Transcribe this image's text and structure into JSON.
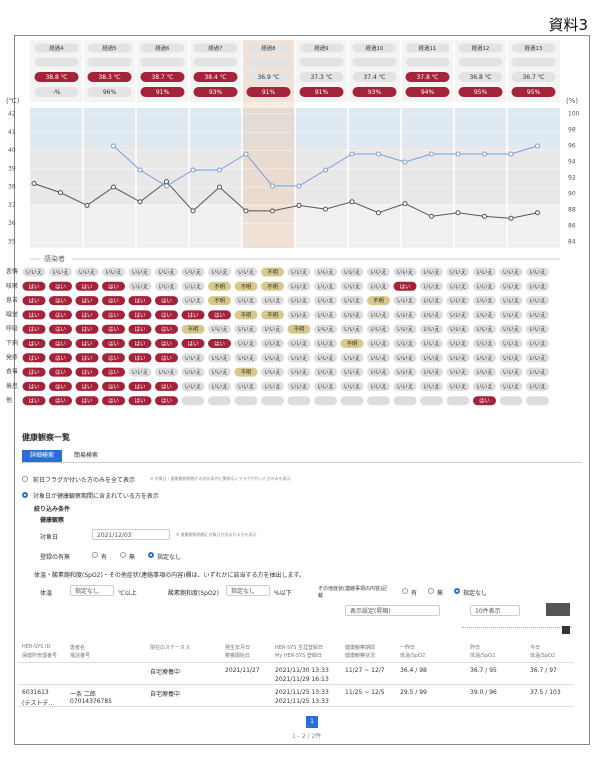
{
  "page_label": "資料3",
  "days": [
    "経過4",
    "経過5",
    "経過6",
    "経過7",
    "経過8",
    "経過9",
    "経過10",
    "経過11",
    "経過12",
    "経過13"
  ],
  "temperatures": [
    "38.8 ℃",
    "38.3 ℃",
    "38.7 ℃",
    "38.4 ℃",
    "36.9 ℃",
    "37.3 ℃",
    "37.4 ℃",
    "37.8 ℃",
    "36.8 ℃",
    "36.7 ℃"
  ],
  "temperature_colors": [
    "#a5233a",
    "#a5233a",
    "#a5233a",
    "#a5233a",
    "#e3e3e3",
    "#e3e3e3",
    "#e3e3e3",
    "#a5233a",
    "#e3e3e3",
    "#e3e3e3"
  ],
  "spo2": [
    "-%",
    "96%",
    "91%",
    "93%",
    "91%",
    "91%",
    "93%",
    "94%",
    "95%",
    "95%"
  ],
  "spo2_colors": [
    "#e3e3e3",
    "#e3e3e3",
    "#a5233a",
    "#a5233a",
    "#a5233a",
    "#a5233a",
    "#a5233a",
    "#a5233a",
    "#a5233a",
    "#a5233a"
  ],
  "chart_data": {
    "type": "line",
    "ylabel": "(℃)",
    "y2label": "(%)",
    "ylim": [
      35,
      42
    ],
    "yticks": [
      35,
      36,
      37,
      38,
      39,
      40,
      41,
      42
    ],
    "y2lim": [
      84,
      100
    ],
    "y2ticks": [
      84,
      86,
      88,
      90,
      92,
      94,
      96,
      98,
      100
    ],
    "series": [
      {
        "color": "#555555",
        "values": [
          38.2,
          37.7,
          37.0,
          38.0,
          37.2,
          38.3,
          36.7,
          38.0,
          36.7,
          36.7,
          37.0,
          36.8,
          37.2,
          36.6,
          37.1,
          36.4,
          36.6,
          36.4,
          36.3,
          36.6
        ]
      },
      {
        "color": "#7a9fd8",
        "axis": "y2",
        "values": [
          null,
          null,
          null,
          96,
          93,
          91,
          93,
          93,
          95,
          91,
          91,
          93,
          95,
          95,
          94,
          95,
          95,
          95,
          95,
          96
        ]
      }
    ]
  },
  "symptoms": {
    "title": "感染者",
    "status_colors": {
      "いいえ": "#dddddd",
      "はい": "#a5233a",
      "不明": "#d6c98a"
    },
    "rows": [
      {
        "label": "表情",
        "cells": [
          "いいえ",
          "いいえ",
          "いいえ",
          "いいえ",
          "いいえ",
          "いいえ",
          "いいえ",
          "いいえ",
          "いいえ",
          "不明",
          "いいえ",
          "いいえ",
          "いいえ",
          "いいえ",
          "いいえ",
          "いいえ",
          "いいえ",
          "いいえ",
          "いいえ",
          "いいえ"
        ]
      },
      {
        "label": "咳嗽",
        "cells": [
          "はい",
          "はい",
          "はい",
          "はい",
          "いいえ",
          "いいえ",
          "いいえ",
          "不明",
          "不明",
          "不明",
          "いいえ",
          "いいえ",
          "いいえ",
          "いいえ",
          "はい",
          "いいえ",
          "いいえ",
          "いいえ",
          "いいえ",
          "いいえ"
        ]
      },
      {
        "label": "息苦",
        "cells": [
          "はい",
          "はい",
          "はい",
          "はい",
          "はい",
          "はい",
          "いいえ",
          "不明",
          "いいえ",
          "いいえ",
          "いいえ",
          "いいえ",
          "いいえ",
          "不明",
          "いいえ",
          "いいえ",
          "いいえ",
          "いいえ",
          "いいえ",
          "いいえ"
        ]
      },
      {
        "label": "嗅覚",
        "cells": [
          "はい",
          "はい",
          "はい",
          "はい",
          "はい",
          "はい",
          "はい",
          "はい",
          "不明",
          "不明",
          "いいえ",
          "いいえ",
          "いいえ",
          "いいえ",
          "いいえ",
          "いいえ",
          "いいえ",
          "いいえ",
          "いいえ",
          "いいえ"
        ]
      },
      {
        "label": "呼吸",
        "cells": [
          "はい",
          "はい",
          "はい",
          "はい",
          "はい",
          "はい",
          "不明",
          "いいえ",
          "いいえ",
          "いいえ",
          "不明",
          "いいえ",
          "いいえ",
          "いいえ",
          "いいえ",
          "いいえ",
          "いいえ",
          "いいえ",
          "いいえ",
          "いいえ"
        ]
      },
      {
        "label": "下痢",
        "cells": [
          "はい",
          "はい",
          "はい",
          "はい",
          "はい",
          "はい",
          "はい",
          "はい",
          "いいえ",
          "いいえ",
          "いいえ",
          "いいえ",
          "不明",
          "いいえ",
          "いいえ",
          "いいえ",
          "いいえ",
          "いいえ",
          "いいえ",
          "いいえ"
        ]
      },
      {
        "label": "発疹",
        "cells": [
          "はい",
          "はい",
          "はい",
          "はい",
          "はい",
          "はい",
          "いいえ",
          "いいえ",
          "いいえ",
          "いいえ",
          "いいえ",
          "いいえ",
          "いいえ",
          "いいえ",
          "いいえ",
          "いいえ",
          "いいえ",
          "いいえ",
          "いいえ",
          "いいえ"
        ]
      },
      {
        "label": "食事",
        "cells": [
          "はい",
          "はい",
          "はい",
          "はい",
          "いいえ",
          "いいえ",
          "いいえ",
          "いいえ",
          "不明",
          "いいえ",
          "いいえ",
          "いいえ",
          "いいえ",
          "いいえ",
          "いいえ",
          "いいえ",
          "いいえ",
          "いいえ",
          "いいえ",
          "いいえ"
        ]
      },
      {
        "label": "倦怠",
        "cells": [
          "はい",
          "はい",
          "はい",
          "はい",
          "はい",
          "はい",
          "いいえ",
          "いいえ",
          "いいえ",
          "いいえ",
          "いいえ",
          "いいえ",
          "いいえ",
          "いいえ",
          "いいえ",
          "いいえ",
          "いいえ",
          "いいえ",
          "いいえ",
          "いいえ"
        ]
      },
      {
        "label": "他",
        "cells": [
          "はい",
          "はい",
          "はい",
          "はい",
          "はい",
          "はい",
          null,
          null,
          null,
          null,
          null,
          null,
          null,
          null,
          null,
          null,
          null,
          "はい",
          null,
          null
        ]
      }
    ]
  },
  "list": {
    "title": "健康観察一覧",
    "tabs": [
      "詳細検索",
      "簡易検索"
    ],
    "option1": "前日フラグが付いた方のみを全て表示",
    "option1_note": "※ 対象日・健康観察期間その他の条件に関係なくフラグが付いた方のみを表示",
    "option2": "対象日が健康観察期間に含まれている方を表示",
    "filter_title": "絞り込み条件",
    "filter_section": "健康観察",
    "date_label": "対象日",
    "date_value": "2021/12/03",
    "date_note": "※ 健康観察期間に対象日が含まれる方を表示",
    "registered_label": "登録の有無",
    "choices": [
      "有",
      "無",
      "指定なし"
    ],
    "condition_note": "体温・酸素飽和度(SpO2)・その他症状(連絡事項の内容)欄は、いずれかに該当する方を抽出します。",
    "temp_label": "体温",
    "temp_select": "指定なし",
    "temp_unit": "℃以上",
    "spo2_label": "酸素飽和度(SpO2)",
    "spo2_select": "指定なし",
    "spo2_unit": "%以下",
    "other_label": "その他症状(連絡事項の内容)記載",
    "sort_select": "表示設定(昇順)",
    "page_size": "10件表示",
    "headers": [
      [
        "HER-SYS ID",
        "保健所管理番号"
      ],
      [
        "患者名",
        "電話番号"
      ],
      [
        "現在のステータス"
      ],
      [
        "発生年月日",
        "療養開始日"
      ],
      [
        "HER-SYS 生涯登録日",
        "My HER-SYS 登録日"
      ],
      [
        "健康観察期間",
        "健康観察状況"
      ],
      [
        "一昨日",
        "体温/SpO2"
      ],
      [
        "昨日",
        "体温/SpO2"
      ],
      [
        "今日",
        "体温/SpO2"
      ]
    ],
    "rows": [
      [
        [],
        [],
        [
          "自宅療養中"
        ],
        [
          "2021/11/27"
        ],
        [
          "2021/11/30 13:33",
          "2021/11/29 16:13"
        ],
        [
          "11/27 ~ 12/7"
        ],
        [
          "36.4 / 98"
        ],
        [
          "36.7 / 95"
        ],
        [
          "36.7 / 97"
        ]
      ],
      [
        [
          "6031613",
          "(テストデ…"
        ],
        [
          "一条 二郎",
          "07014376785"
        ],
        [
          "自宅療養中"
        ],
        [],
        [
          "2021/11/25 13:33",
          "2021/11/25 13:33"
        ],
        [
          "11/25 ~ 12/5"
        ],
        [
          "29.5 / 99"
        ],
        [
          "39.0 / 96"
        ],
        [
          "37.5 / 103"
        ]
      ]
    ],
    "page": "1",
    "page_range": "1 - 2 / 2件"
  }
}
